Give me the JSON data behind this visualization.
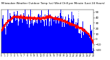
{
  "title": "Milwaukee Weather Outdoor Temp (vs) Wind Chill per Minute (Last 24 Hours)",
  "bg_color": "#ffffff",
  "plot_bg_color": "#ffffff",
  "grid_color": "#aaaaaa",
  "outdoor_temp_color": "#0000ff",
  "wind_chill_color": "#ff0000",
  "ylim": [
    -25,
    55
  ],
  "yticks": [
    50,
    40,
    30,
    20,
    10,
    0,
    -10,
    -20
  ],
  "num_points": 1440,
  "axis_text_color": "#000000",
  "tick_fontsize": 3.0,
  "title_fontsize": 2.8,
  "title_color": "#000000"
}
